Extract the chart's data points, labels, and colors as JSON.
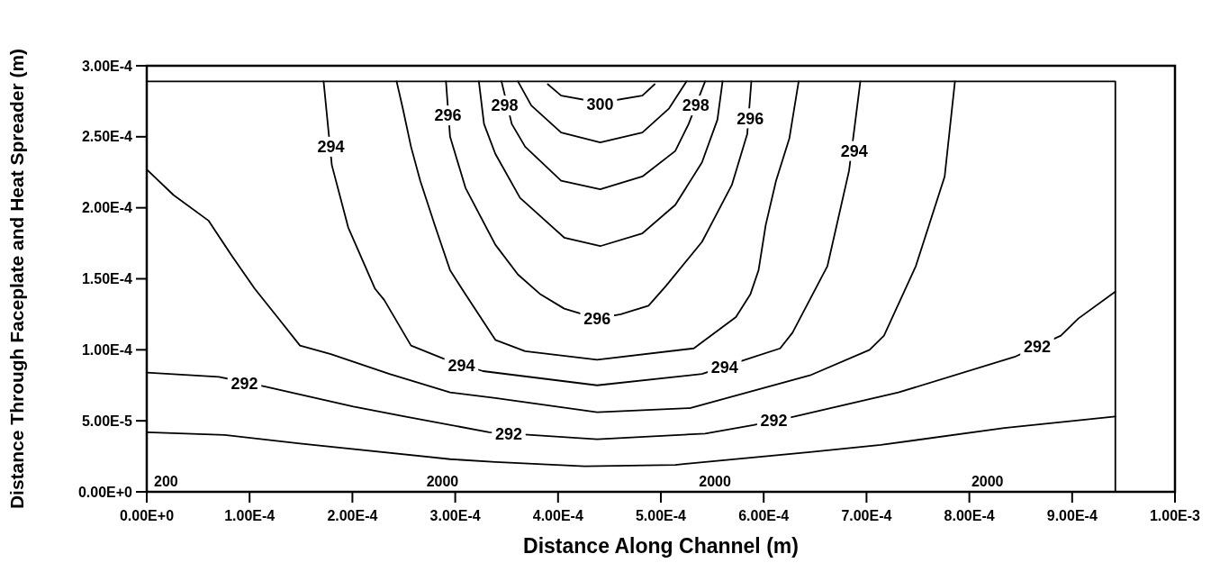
{
  "chart_data": {
    "type": "line",
    "xlabel": "Distance Along Channel (m)",
    "ylabel": "Distance Through Faceplate and Heat Spreader (m)",
    "xlim": [
      0,
      0.001
    ],
    "ylim": [
      0,
      0.0003
    ],
    "xticks": [
      {
        "value": 0,
        "label": "0.00E+0"
      },
      {
        "value": 0.0001,
        "label": "1.00E-4"
      },
      {
        "value": 0.0002,
        "label": "2.00E-4"
      },
      {
        "value": 0.0003,
        "label": "3.00E-4"
      },
      {
        "value": 0.0004,
        "label": "4.00E-4"
      },
      {
        "value": 0.0005,
        "label": "5.00E-4"
      },
      {
        "value": 0.0006,
        "label": "6.00E-4"
      },
      {
        "value": 0.0007,
        "label": "7.00E-4"
      },
      {
        "value": 0.0008,
        "label": "8.00E-4"
      },
      {
        "value": 0.0009,
        "label": "9.00E-4"
      },
      {
        "value": 0.001,
        "label": "1.00E-3"
      }
    ],
    "yticks": [
      {
        "value": 0,
        "label": "0.00E+0"
      },
      {
        "value": 5e-05,
        "label": "5.00E-5"
      },
      {
        "value": 0.0001,
        "label": "1.00E-4"
      },
      {
        "value": 0.00015,
        "label": "1.50E-4"
      },
      {
        "value": 0.0002,
        "label": "2.00E-4"
      },
      {
        "value": 0.00025,
        "label": "2.50E-4"
      },
      {
        "value": 0.0003,
        "label": "3.00E-4"
      }
    ],
    "grid": false,
    "marker": "none",
    "line_style": "solid",
    "series": [
      {
        "color": "#000000",
        "x": [
          0,
          7.6e-05,
          0.000149,
          0.000295,
          0.000339,
          0.000426,
          0.000514,
          0.000645,
          0.000714,
          0.000834,
          0.000942
        ],
        "values": [
          4.2e-05,
          4e-05,
          3.4e-05,
          2.3e-05,
          2.1e-05,
          1.8e-05,
          1.9e-05,
          2.8e-05,
          3.3e-05,
          4.5e-05,
          5.3e-05
        ]
      },
      {
        "color": "#000000",
        "x": [
          0,
          7e-05,
          0.000116,
          0.000201,
          0.000251,
          0.000333,
          0.000374,
          0.000438,
          0.000543,
          0.00059,
          0.00063,
          0.000731,
          0.000844,
          0.000889,
          0.000906,
          0.000942
        ],
        "values": [
          8.4e-05,
          8.1e-05,
          7.4e-05,
          6e-05,
          5.3e-05,
          4.2e-05,
          4e-05,
          3.7e-05,
          4.1e-05,
          4.7e-05,
          5.3e-05,
          7e-05,
          9.5e-05,
          0.00011,
          0.000122,
          0.000141
        ]
      },
      {
        "color": "#000000",
        "x": [
          0,
          2.6e-05,
          6e-05,
          8.2e-05,
          0.000105,
          0.000126,
          0.000149,
          0.000179,
          0.000236,
          0.000295,
          0.000339,
          0.000438,
          0.000529,
          0.000645,
          0.000703,
          0.000717,
          0.000748,
          0.000776,
          0.000786
        ],
        "values": [
          0.000227,
          0.000209,
          0.000191,
          0.000167,
          0.000143,
          0.000124,
          0.000103,
          9.7e-05,
          8.3e-05,
          7e-05,
          6.6e-05,
          5.6e-05,
          5.9e-05,
          8.2e-05,
          0.0001,
          0.00011,
          0.000159,
          0.000222,
          0.000289
        ]
      },
      {
        "color": "#000000",
        "x": [
          0.000172,
          0.00018,
          0.000196,
          0.000222,
          0.000231,
          0.000257,
          0.000288,
          0.000327,
          0.000438,
          0.00054,
          0.000582,
          0.000616,
          0.000628,
          0.000662,
          0.000683,
          0.000694
        ],
        "values": [
          0.000289,
          0.00023,
          0.000186,
          0.000143,
          0.000135,
          0.000103,
          9.4e-05,
          8.5e-05,
          7.5e-05,
          8.3e-05,
          9.3e-05,
          0.000101,
          0.000112,
          0.000159,
          0.000226,
          0.000289
        ]
      },
      {
        "color": "#000000",
        "x": [
          0.000243,
          0.000249,
          0.000257,
          0.000266,
          0.00028,
          0.000295,
          0.00031,
          0.000339,
          0.000368,
          0.000438,
          0.000532,
          0.000573,
          0.000587,
          0.000595,
          0.000602,
          0.000612,
          0.000625,
          0.000634
        ],
        "values": [
          0.000289,
          0.00027,
          0.000243,
          0.000219,
          0.000188,
          0.000156,
          0.000139,
          0.000107,
          9.9e-05,
          9.3e-05,
          0.000101,
          0.000123,
          0.000139,
          0.000156,
          0.000188,
          0.000219,
          0.000249,
          0.000289
        ]
      },
      {
        "color": "#000000",
        "x": [
          0.000291,
          0.000295,
          0.00031,
          0.000339,
          0.000361,
          0.000383,
          0.000406,
          0.000438,
          0.000461,
          0.000488,
          0.000505,
          0.00054,
          0.000569,
          0.000584,
          0.000588
        ],
        "values": [
          0.000289,
          0.00025,
          0.000214,
          0.000174,
          0.000153,
          0.000139,
          0.000129,
          0.000122,
          0.000125,
          0.000131,
          0.000145,
          0.000176,
          0.000216,
          0.000252,
          0.000289
        ]
      },
      {
        "color": "#000000",
        "x": [
          0.000323,
          0.000328,
          0.000339,
          0.000363,
          0.000406,
          0.000441,
          0.000482,
          0.000514,
          0.00054,
          0.000555,
          0.00056
        ],
        "values": [
          0.000289,
          0.000259,
          0.000238,
          0.000207,
          0.000179,
          0.000173,
          0.000182,
          0.000202,
          0.000232,
          0.000262,
          0.000289
        ]
      },
      {
        "color": "#000000",
        "x": [
          0.000345,
          0.000355,
          0.000368,
          0.000403,
          0.000441,
          0.000482,
          0.000514,
          0.000527,
          0.000543
        ],
        "values": [
          0.000289,
          0.000259,
          0.000243,
          0.000219,
          0.000213,
          0.000222,
          0.00024,
          0.000259,
          0.000289
        ]
      },
      {
        "color": "#000000",
        "x": [
          0.000361,
          0.000374,
          0.000403,
          0.000441,
          0.000482,
          0.000508,
          0.000525
        ],
        "values": [
          0.000289,
          0.000272,
          0.000253,
          0.000246,
          0.000253,
          0.00027,
          0.000289
        ]
      },
      {
        "color": "#000000",
        "x": [
          0.00039,
          0.000403,
          0.000441,
          0.000482,
          0.000494
        ],
        "values": [
          0.000287,
          0.000279,
          0.000274,
          0.000279,
          0.000287
        ]
      },
      {
        "color": "#000000",
        "x": [
          0,
          0.000942,
          0.000942
        ],
        "values": [
          0.000289,
          0.000289,
          0
        ]
      }
    ],
    "annotations": [
      {
        "text": "292",
        "x": 9.5e-05,
        "y": 7.6e-05
      },
      {
        "text": "292",
        "x": 0.000352,
        "y": 4.1e-05
      },
      {
        "text": "292",
        "x": 0.00061,
        "y": 5e-05
      },
      {
        "text": "292",
        "x": 0.000866,
        "y": 0.000102
      },
      {
        "text": "294",
        "x": 0.000179,
        "y": 0.000243
      },
      {
        "text": "294",
        "x": 0.000306,
        "y": 8.9e-05
      },
      {
        "text": "294",
        "x": 0.000562,
        "y": 8.8e-05
      },
      {
        "text": "294",
        "x": 0.000688,
        "y": 0.00024
      },
      {
        "text": "296",
        "x": 0.000293,
        "y": 0.000265
      },
      {
        "text": "296",
        "x": 0.000438,
        "y": 0.000122
      },
      {
        "text": "296",
        "x": 0.000587,
        "y": 0.000263
      },
      {
        "text": "298",
        "x": 0.000348,
        "y": 0.000272
      },
      {
        "text": "298",
        "x": 0.000534,
        "y": 0.000272
      },
      {
        "text": "300",
        "x": 0.000441,
        "y": 0.000273
      },
      "200",
      "2000",
      "2000",
      "2000"
    ]
  }
}
